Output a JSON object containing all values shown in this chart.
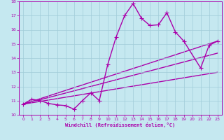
{
  "xlabel": "Windchill (Refroidissement éolien,°C)",
  "xlim": [
    -0.5,
    23.5
  ],
  "ylim": [
    10,
    18
  ],
  "xticks": [
    0,
    1,
    2,
    3,
    4,
    5,
    6,
    7,
    8,
    9,
    10,
    11,
    12,
    13,
    14,
    15,
    16,
    17,
    18,
    19,
    20,
    21,
    22,
    23
  ],
  "yticks": [
    10,
    11,
    12,
    13,
    14,
    15,
    16,
    17,
    18
  ],
  "background_color": "#c5e8f0",
  "grid_color": "#a0ccd8",
  "line_color": "#aa00aa",
  "line_width": 1.0,
  "marker": "+",
  "marker_size": 4,
  "series": [
    {
      "x": [
        0,
        1,
        2,
        3,
        4,
        5,
        6,
        7,
        8,
        9,
        10,
        11,
        12,
        13,
        14,
        15,
        16,
        17,
        18,
        19,
        21,
        22,
        23
      ],
      "y": [
        10.75,
        11.1,
        11.0,
        10.8,
        10.7,
        10.65,
        10.4,
        11.0,
        11.55,
        11.0,
        13.55,
        15.5,
        17.0,
        17.85,
        16.8,
        16.3,
        16.35,
        17.2,
        15.85,
        15.2,
        13.3,
        14.9,
        15.2
      ]
    },
    {
      "x": [
        0,
        23
      ],
      "y": [
        10.75,
        15.2
      ]
    },
    {
      "x": [
        0,
        23
      ],
      "y": [
        10.75,
        14.35
      ]
    },
    {
      "x": [
        0,
        23
      ],
      "y": [
        10.75,
        13.0
      ]
    }
  ]
}
